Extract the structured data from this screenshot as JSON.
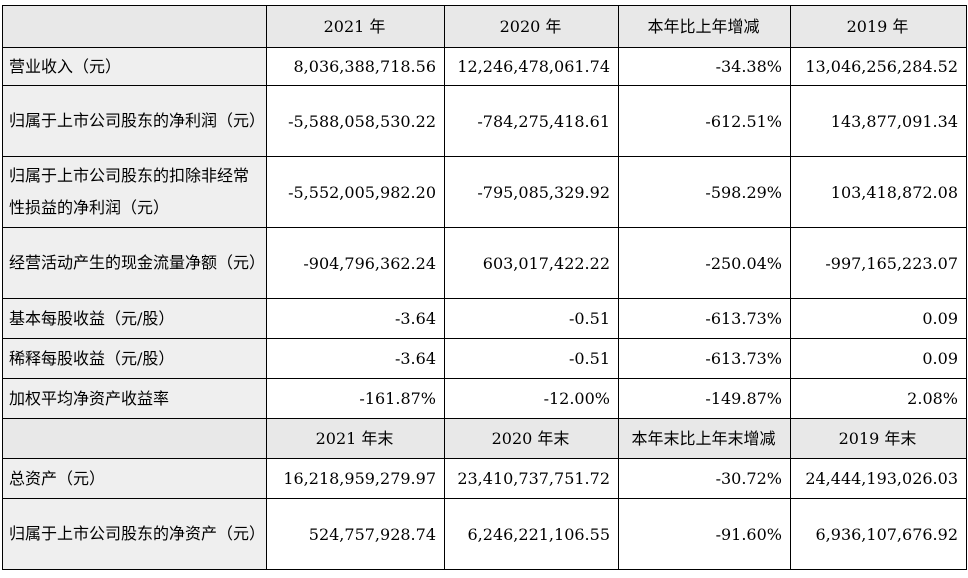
{
  "header1": [
    "",
    "2021 年",
    "2020 年",
    "本年比上年增减",
    "2019 年"
  ],
  "rows1": [
    {
      "label": "营业收入（元）",
      "v2021": "8,036,388,718.56",
      "v2020": "12,246,478,061.74",
      "change": "-34.38%",
      "v2019": "13,046,256,284.52"
    },
    {
      "label": "归属于上市公司股东的净利润（元）",
      "v2021": "-5,588,058,530.22",
      "v2020": "-784,275,418.61",
      "change": "-612.51%",
      "v2019": "143,877,091.34"
    },
    {
      "label": "归属于上市公司股东的扣除非经常性损益的净利润（元）",
      "v2021": "-5,552,005,982.20",
      "v2020": "-795,085,329.92",
      "change": "-598.29%",
      "v2019": "103,418,872.08"
    },
    {
      "label": "经营活动产生的现金流量净额（元）",
      "v2021": "-904,796,362.24",
      "v2020": "603,017,422.22",
      "change": "-250.04%",
      "v2019": "-997,165,223.07"
    },
    {
      "label": "基本每股收益（元/股）",
      "v2021": "-3.64",
      "v2020": "-0.51",
      "change": "-613.73%",
      "v2019": "0.09"
    },
    {
      "label": "稀释每股收益（元/股）",
      "v2021": "-3.64",
      "v2020": "-0.51",
      "change": "-613.73%",
      "v2019": "0.09"
    },
    {
      "label": "加权平均净资产收益率",
      "v2021": "-161.87%",
      "v2020": "-12.00%",
      "change": "-149.87%",
      "v2019": "2.08%"
    }
  ],
  "header2": [
    "",
    "2021 年末",
    "2020 年末",
    "本年末比上年末增减",
    "2019 年末"
  ],
  "rows2": [
    {
      "label": "总资产（元）",
      "v2021": "16,218,959,279.97",
      "v2020": "23,410,737,751.72",
      "change": "-30.72%",
      "v2019": "24,444,193,026.03"
    },
    {
      "label": "归属于上市公司股东的净资产（元）",
      "v2021": "524,757,928.74",
      "v2020": "6,246,221,106.55",
      "change": "-91.60%",
      "v2019": "6,936,107,676.92"
    }
  ]
}
